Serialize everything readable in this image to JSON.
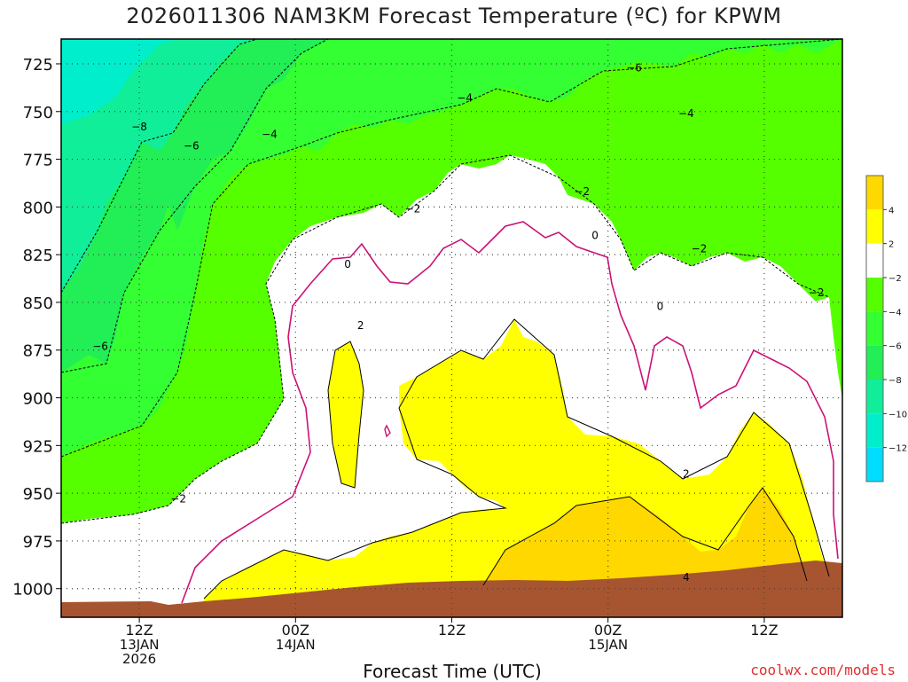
{
  "chart_data": {
    "type": "contour",
    "title": "2026011306 NAM3KM Forecast Temperature (ºC) for KPWM",
    "xlabel": "Forecast Time (UTC)",
    "credit": "coolwx.com/models",
    "y_axis": {
      "quantity": "pressure (hPa)",
      "inverted": true,
      "ylim": [
        1015,
        712
      ],
      "ticks": [
        725,
        750,
        775,
        800,
        825,
        850,
        875,
        900,
        925,
        950,
        975,
        1000
      ]
    },
    "x_axis": {
      "start": "2026-01-13T06Z",
      "end": "2026-01-15T18Z",
      "ticks": [
        {
          "time": "2026-01-13T12Z",
          "lines": [
            "12Z",
            "13JAN",
            "2026"
          ]
        },
        {
          "time": "2026-01-14T00Z",
          "lines": [
            "00Z",
            "14JAN"
          ]
        },
        {
          "time": "2026-01-14T12Z",
          "lines": [
            "12Z"
          ]
        },
        {
          "time": "2026-01-15T00Z",
          "lines": [
            "00Z",
            "15JAN"
          ]
        },
        {
          "time": "2026-01-15T12Z",
          "lines": [
            "12Z"
          ]
        }
      ]
    },
    "grid": true,
    "colorbar": {
      "placement": "right",
      "bands": [
        {
          "range": [
            4,
            6
          ],
          "color": "#ffd800"
        },
        {
          "range": [
            2,
            4
          ],
          "color": "#ffff00"
        },
        {
          "range": [
            -2,
            2
          ],
          "color": "#ffffff"
        },
        {
          "range": [
            -4,
            -2
          ],
          "color": "#55ff00"
        },
        {
          "range": [
            -6,
            -4
          ],
          "color": "#33ff33"
        },
        {
          "range": [
            -8,
            -6
          ],
          "color": "#22ee55"
        },
        {
          "range": [
            -10,
            -8
          ],
          "color": "#11ee99"
        },
        {
          "range": [
            -12,
            -10
          ],
          "color": "#00eecc"
        },
        {
          "range": [
            -14,
            -12
          ],
          "color": "#00ddff"
        }
      ],
      "labels": [
        "4",
        "2",
        "−2",
        "−4",
        "−6",
        "−8",
        "−10",
        "−12"
      ]
    },
    "contour_labels": [
      {
        "text": "−8",
        "time": "2026-01-13T12Z",
        "p": 758
      },
      {
        "text": "−6",
        "time": "2026-01-13T16Z",
        "p": 768
      },
      {
        "text": "−6",
        "time": "2026-01-13T09Z",
        "p": 873
      },
      {
        "text": "−4",
        "time": "2026-01-13T22Z",
        "p": 762
      },
      {
        "text": "−4",
        "time": "2026-01-14T13Z",
        "p": 743
      },
      {
        "text": "−4",
        "time": "2026-01-15T06Z",
        "p": 751
      },
      {
        "text": "−6",
        "time": "2026-01-15T02Z",
        "p": 727
      },
      {
        "text": "−2",
        "time": "2026-01-14T09Z",
        "p": 801
      },
      {
        "text": "−2",
        "time": "2026-01-14T22Z",
        "p": 792
      },
      {
        "text": "−2",
        "time": "2026-01-15T07Z",
        "p": 822
      },
      {
        "text": "−2",
        "time": "2026-01-15T16Z",
        "p": 845
      },
      {
        "text": "−2",
        "time": "2026-01-13T15Z",
        "p": 953
      },
      {
        "text": "0",
        "time": "2026-01-14T04Z",
        "p": 830
      },
      {
        "text": "0",
        "time": "2026-01-14T23Z",
        "p": 815
      },
      {
        "text": "0",
        "time": "2026-01-15T04Z",
        "p": 852
      },
      {
        "text": "2",
        "time": "2026-01-14T05Z",
        "p": 862
      },
      {
        "text": "2",
        "time": "2026-01-15T06Z",
        "p": 940
      },
      {
        "text": "4",
        "time": "2026-01-15T06Z",
        "p": 994
      }
    ]
  }
}
